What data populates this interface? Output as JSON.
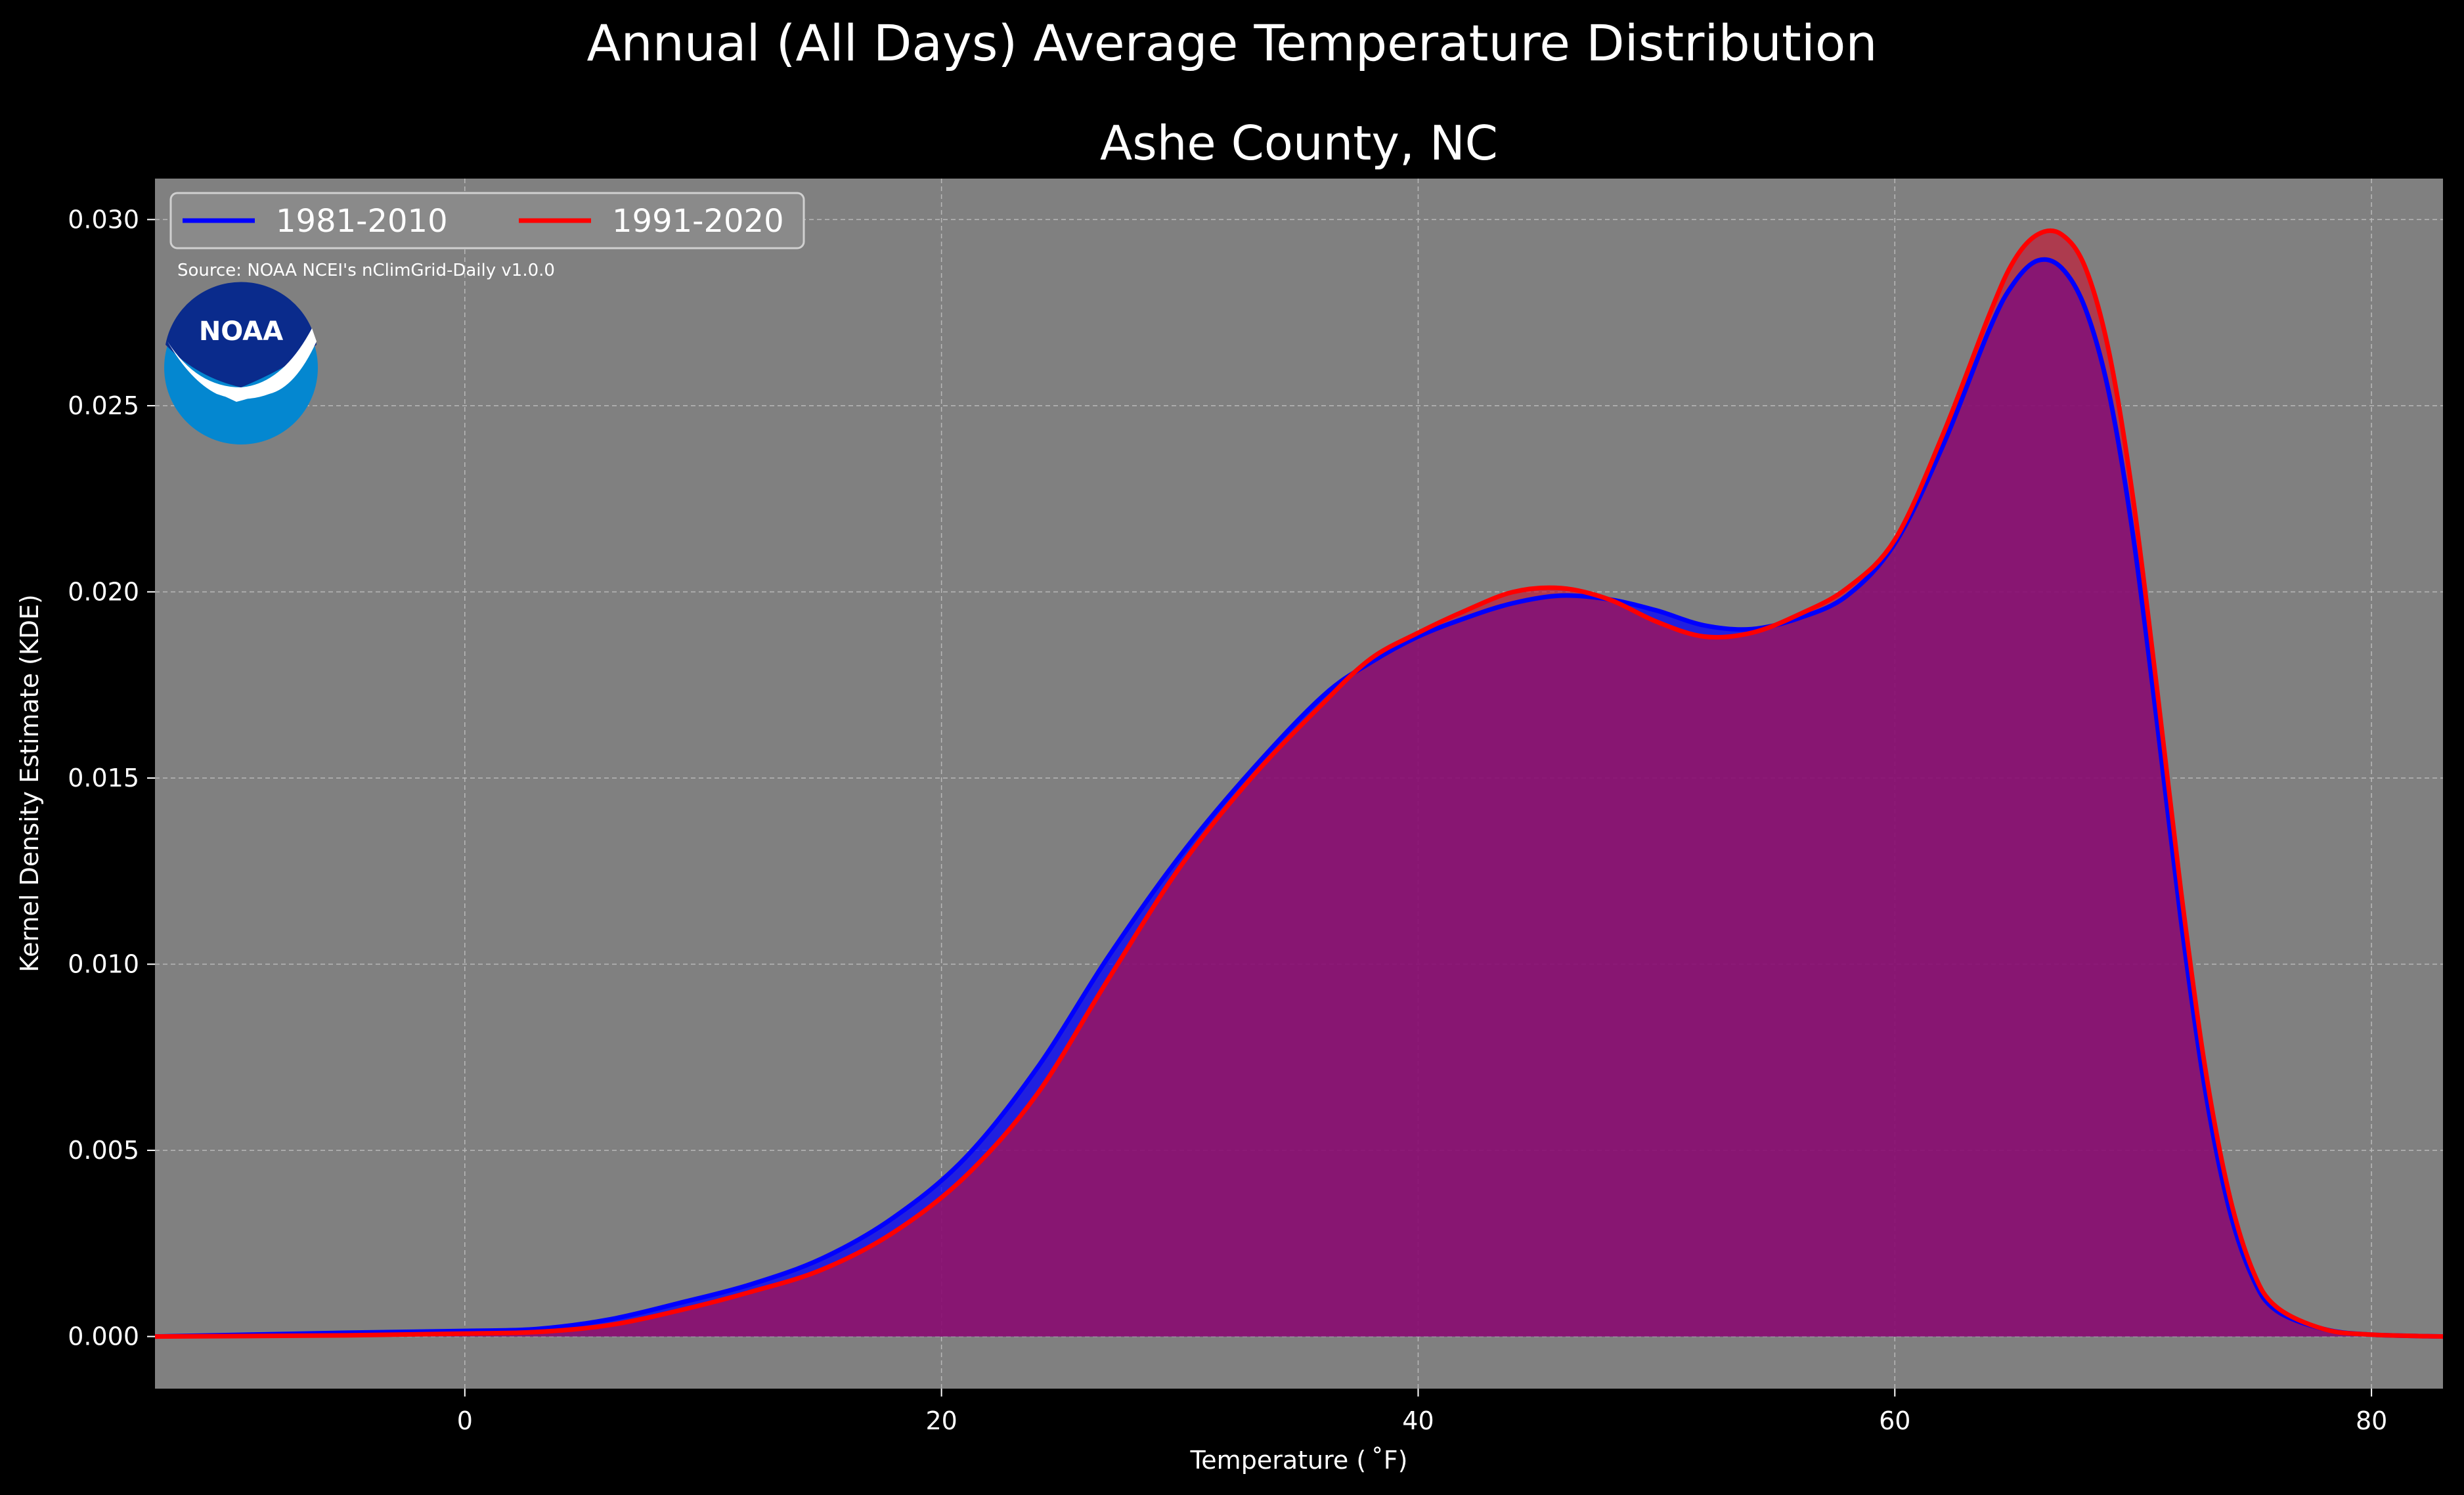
{
  "suptitle": "Annual (All Days) Average Temperature Distribution",
  "chart_data": {
    "type": "area",
    "title": "Ashe County, NC",
    "xlabel": "Temperature ($^\\circ$F)",
    "xlabel_display": "Temperature ( ˚F)",
    "ylabel": "Kernel Density Estimate (KDE)",
    "xlim": [
      -13,
      83
    ],
    "ylim": [
      -0.0014,
      0.0311
    ],
    "xticks": [
      0,
      20,
      40,
      60,
      80
    ],
    "xtick_labels": [
      "0",
      "20",
      "40",
      "60",
      "80"
    ],
    "yticks": [
      0.0,
      0.005,
      0.01,
      0.015,
      0.02,
      0.025,
      0.03
    ],
    "ytick_labels": [
      "0.000",
      "0.005",
      "0.010",
      "0.015",
      "0.020",
      "0.025",
      "0.030"
    ],
    "grid": true,
    "legend_position": "top-left",
    "background_color": "#808080",
    "series": [
      {
        "name": "1981-2010",
        "color": "#0000ff",
        "x": [
          -13,
          -5,
          0,
          3,
          6,
          9,
          12,
          15,
          18,
          21,
          24,
          27,
          30,
          33,
          36,
          38,
          40,
          42,
          44,
          46,
          48,
          50,
          52,
          54,
          56,
          58,
          60,
          62,
          64,
          65,
          66,
          67,
          68,
          69,
          70,
          71,
          72,
          73,
          74,
          75,
          76,
          78,
          80,
          83
        ],
        "values": [
          0.0,
          0.0001,
          0.00015,
          0.0002,
          0.00045,
          0.0009,
          0.0014,
          0.0021,
          0.0032,
          0.0048,
          0.0072,
          0.0102,
          0.0129,
          0.0152,
          0.0172,
          0.0181,
          0.0188,
          0.0193,
          0.0197,
          0.0199,
          0.0198,
          0.0195,
          0.0191,
          0.019,
          0.0193,
          0.0199,
          0.0213,
          0.0239,
          0.0271,
          0.0283,
          0.0289,
          0.0287,
          0.0276,
          0.0253,
          0.0215,
          0.0165,
          0.0112,
          0.0067,
          0.0035,
          0.0016,
          0.0007,
          0.0002,
          5e-05,
          0.0
        ]
      },
      {
        "name": "1991-2020",
        "color": "#ff0000",
        "x": [
          -13,
          -5,
          0,
          3,
          6,
          9,
          12,
          15,
          18,
          21,
          24,
          27,
          30,
          33,
          36,
          38,
          40,
          42,
          44,
          46,
          48,
          50,
          52,
          54,
          56,
          58,
          60,
          62,
          64,
          65,
          66,
          67,
          68,
          69,
          70,
          71,
          72,
          73,
          74,
          75,
          76,
          78,
          80,
          83
        ],
        "values": [
          0.0,
          3e-05,
          8e-05,
          0.00012,
          0.0003,
          0.0007,
          0.0012,
          0.0018,
          0.0028,
          0.0043,
          0.0065,
          0.0096,
          0.0126,
          0.015,
          0.017,
          0.0182,
          0.0189,
          0.0195,
          0.02,
          0.0201,
          0.0198,
          0.0192,
          0.0188,
          0.0189,
          0.0194,
          0.0201,
          0.0214,
          0.0242,
          0.0275,
          0.0289,
          0.0296,
          0.0296,
          0.0287,
          0.0264,
          0.0225,
          0.0174,
          0.012,
          0.0073,
          0.0039,
          0.0018,
          0.0008,
          0.0002,
          5e-05,
          0.0
        ]
      }
    ],
    "annotations": [
      "Source: NOAA NCEI's nClimGrid-Daily v1.0.0"
    ]
  },
  "logo": {
    "text": "NOAA",
    "name": "noaa-logo"
  }
}
